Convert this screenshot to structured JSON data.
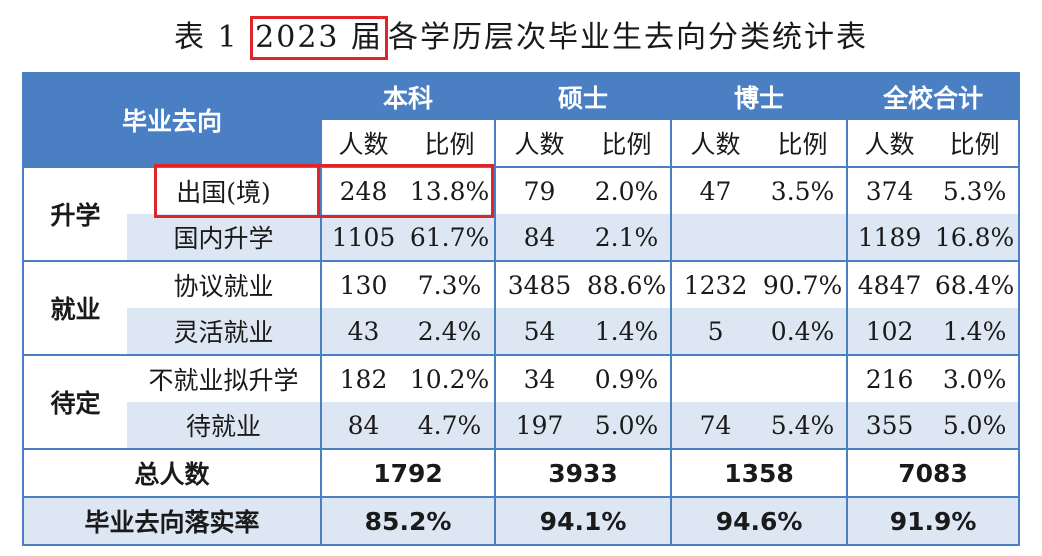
{
  "title": {
    "prefix": "表 1 ",
    "year": "2023 届",
    "rest": "各学历层次毕业生去向分类统计表"
  },
  "header": {
    "corner": "毕业去向",
    "groups": [
      "本科",
      "硕士",
      "博士",
      "全校合计"
    ],
    "sub": [
      "人数",
      "比例"
    ]
  },
  "categories": {
    "c1": "升学",
    "c2": "就业",
    "c3": "待定"
  },
  "rows": [
    {
      "label": "出国(境)",
      "cells": [
        "248",
        "13.8%",
        "79",
        "2.0%",
        "47",
        "3.5%",
        "374",
        "5.3%"
      ]
    },
    {
      "label": "国内升学",
      "cells": [
        "1105",
        "61.7%",
        "84",
        "2.1%",
        "",
        "",
        "1189",
        "16.8%"
      ]
    },
    {
      "label": "协议就业",
      "cells": [
        "130",
        "7.3%",
        "3485",
        "88.6%",
        "1232",
        "90.7%",
        "4847",
        "68.4%"
      ]
    },
    {
      "label": "灵活就业",
      "cells": [
        "43",
        "2.4%",
        "54",
        "1.4%",
        "5",
        "0.4%",
        "102",
        "1.4%"
      ]
    },
    {
      "label": "不就业拟升学",
      "cells": [
        "182",
        "10.2%",
        "34",
        "0.9%",
        "",
        "",
        "216",
        "3.0%"
      ]
    },
    {
      "label": "待就业",
      "cells": [
        "84",
        "4.7%",
        "197",
        "5.0%",
        "74",
        "5.4%",
        "355",
        "5.0%"
      ]
    }
  ],
  "total": {
    "label": "总人数",
    "values": [
      "1792",
      "3933",
      "1358",
      "7083"
    ]
  },
  "rate": {
    "label": "毕业去向落实率",
    "values": [
      "85.2%",
      "94.1%",
      "94.6%",
      "91.9%"
    ]
  }
}
